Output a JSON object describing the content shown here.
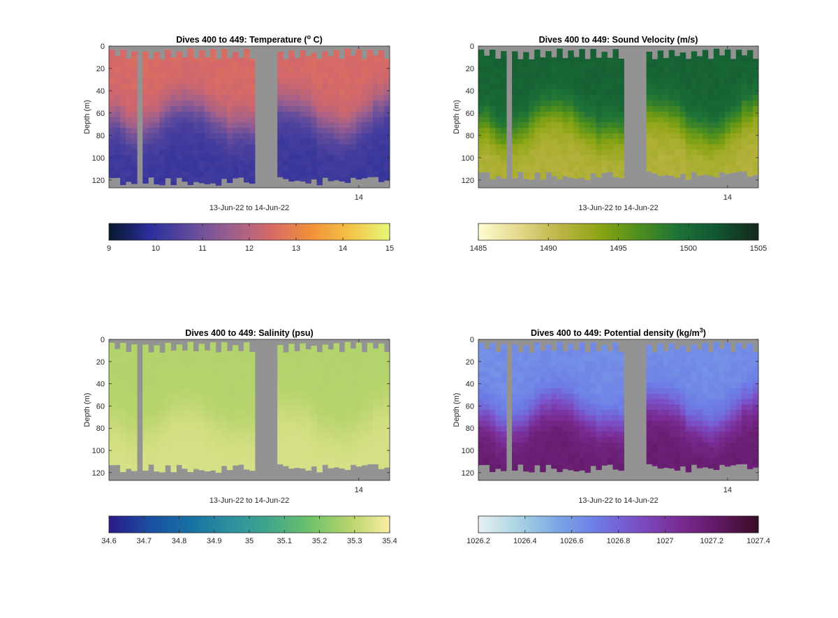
{
  "figure": {
    "background": "#ffffff",
    "axes_background": "#939393"
  },
  "chart_data": [
    {
      "id": "temperature",
      "type": "heatmap",
      "title_main": "Dives 400 to 449: Temperature (",
      "title_sup": "o",
      "title_end": " C)",
      "xlabel": "13-Jun-22 to 14-Jun-22",
      "ylabel": "Depth (m)",
      "ylim": [
        0,
        127
      ],
      "y_reversed": true,
      "y_ticks": [
        0,
        20,
        40,
        60,
        80,
        100,
        120
      ],
      "x_ticks": [
        "14"
      ],
      "colormap": "thermal",
      "colormap_stops": [
        "#06182b",
        "#2a2f9c",
        "#5e4a9d",
        "#9a5f8e",
        "#d4686a",
        "#f08f3a",
        "#f5c246",
        "#e7f777"
      ],
      "clim": [
        9,
        15
      ],
      "colorbar_ticks": [
        "9",
        "10",
        "11",
        "12",
        "13",
        "14",
        "15"
      ],
      "gaps_dives": [
        5,
        26
      ],
      "profile": {
        "surface_value": 12.5,
        "deep_value": 10.15,
        "thermocline_depth_m": 60,
        "bottom_depth_m": 120
      }
    },
    {
      "id": "sound_velocity",
      "type": "heatmap",
      "title_main": "Dives 400 to 449: Sound Velocity (m/s)",
      "title_sup": "",
      "title_end": "",
      "xlabel": "13-Jun-22 to 14-Jun-22",
      "ylabel": "Depth (m)",
      "ylim": [
        0,
        127
      ],
      "y_reversed": true,
      "y_ticks": [
        0,
        20,
        40,
        60,
        80,
        100,
        120
      ],
      "x_ticks": [
        "14"
      ],
      "colormap": "speed",
      "colormap_stops": [
        "#fffcd1",
        "#e3d98c",
        "#bfb548",
        "#8da514",
        "#4f8f1c",
        "#1d7237",
        "#115430",
        "#13281c"
      ],
      "clim": [
        1485,
        1505
      ],
      "colorbar_ticks": [
        "1485",
        "1490",
        "1495",
        "1500",
        "1505"
      ],
      "gaps_dives": [
        5,
        26
      ],
      "profile": {
        "surface_value": 1500.8,
        "deep_value": 1491.5,
        "thermocline_depth_m": 65,
        "bottom_depth_m": 115
      }
    },
    {
      "id": "salinity",
      "type": "heatmap",
      "title_main": "Dives 400 to 449: Salinity (psu)",
      "title_sup": "",
      "title_end": "",
      "xlabel": "13-Jun-22 to 14-Jun-22",
      "ylabel": "Depth (m)",
      "ylim": [
        0,
        127
      ],
      "y_reversed": true,
      "y_ticks": [
        0,
        20,
        40,
        60,
        80,
        100,
        120
      ],
      "x_ticks": [
        "14"
      ],
      "colormap": "haline",
      "colormap_stops": [
        "#2a1a8a",
        "#1b4da0",
        "#1770a3",
        "#2d8f9e",
        "#41a68c",
        "#6dc26a",
        "#b7d46c",
        "#fbeda3"
      ],
      "clim": [
        34.6,
        35.4
      ],
      "colorbar_ticks": [
        "34.6",
        "34.7",
        "34.8",
        "34.9",
        "35",
        "35.1",
        "35.2",
        "35.3",
        "35.4"
      ],
      "gaps_dives": [
        5,
        26
      ],
      "profile": {
        "surface_value": 35.28,
        "deep_value": 35.34,
        "thermocline_depth_m": 70,
        "bottom_depth_m": 115
      }
    },
    {
      "id": "potential_density",
      "type": "heatmap",
      "title_main": "Dives 400 to 449: Potential density (kg/m",
      "title_sup": "3",
      "title_end": ")",
      "xlabel": "13-Jun-22 to 14-Jun-22",
      "ylabel": "Depth (m)",
      "ylim": [
        0,
        127
      ],
      "y_reversed": true,
      "y_ticks": [
        0,
        20,
        40,
        60,
        80,
        100,
        120
      ],
      "x_ticks": [
        "14"
      ],
      "colormap": "dense",
      "colormap_stops": [
        "#e6f1f1",
        "#a9d3e2",
        "#7aa6e6",
        "#6d7ae6",
        "#7b4ec4",
        "#7a2c94",
        "#611863",
        "#360d24"
      ],
      "clim": [
        1026.2,
        1027.4
      ],
      "colorbar_ticks": [
        "1026.2",
        "1026.4",
        "1026.6",
        "1026.8",
        "1027",
        "1027.2",
        "1027.4"
      ],
      "gaps_dives": [
        5,
        26
      ],
      "profile": {
        "surface_value": 1026.64,
        "deep_value": 1027.18,
        "thermocline_depth_m": 65,
        "bottom_depth_m": 115
      }
    }
  ]
}
